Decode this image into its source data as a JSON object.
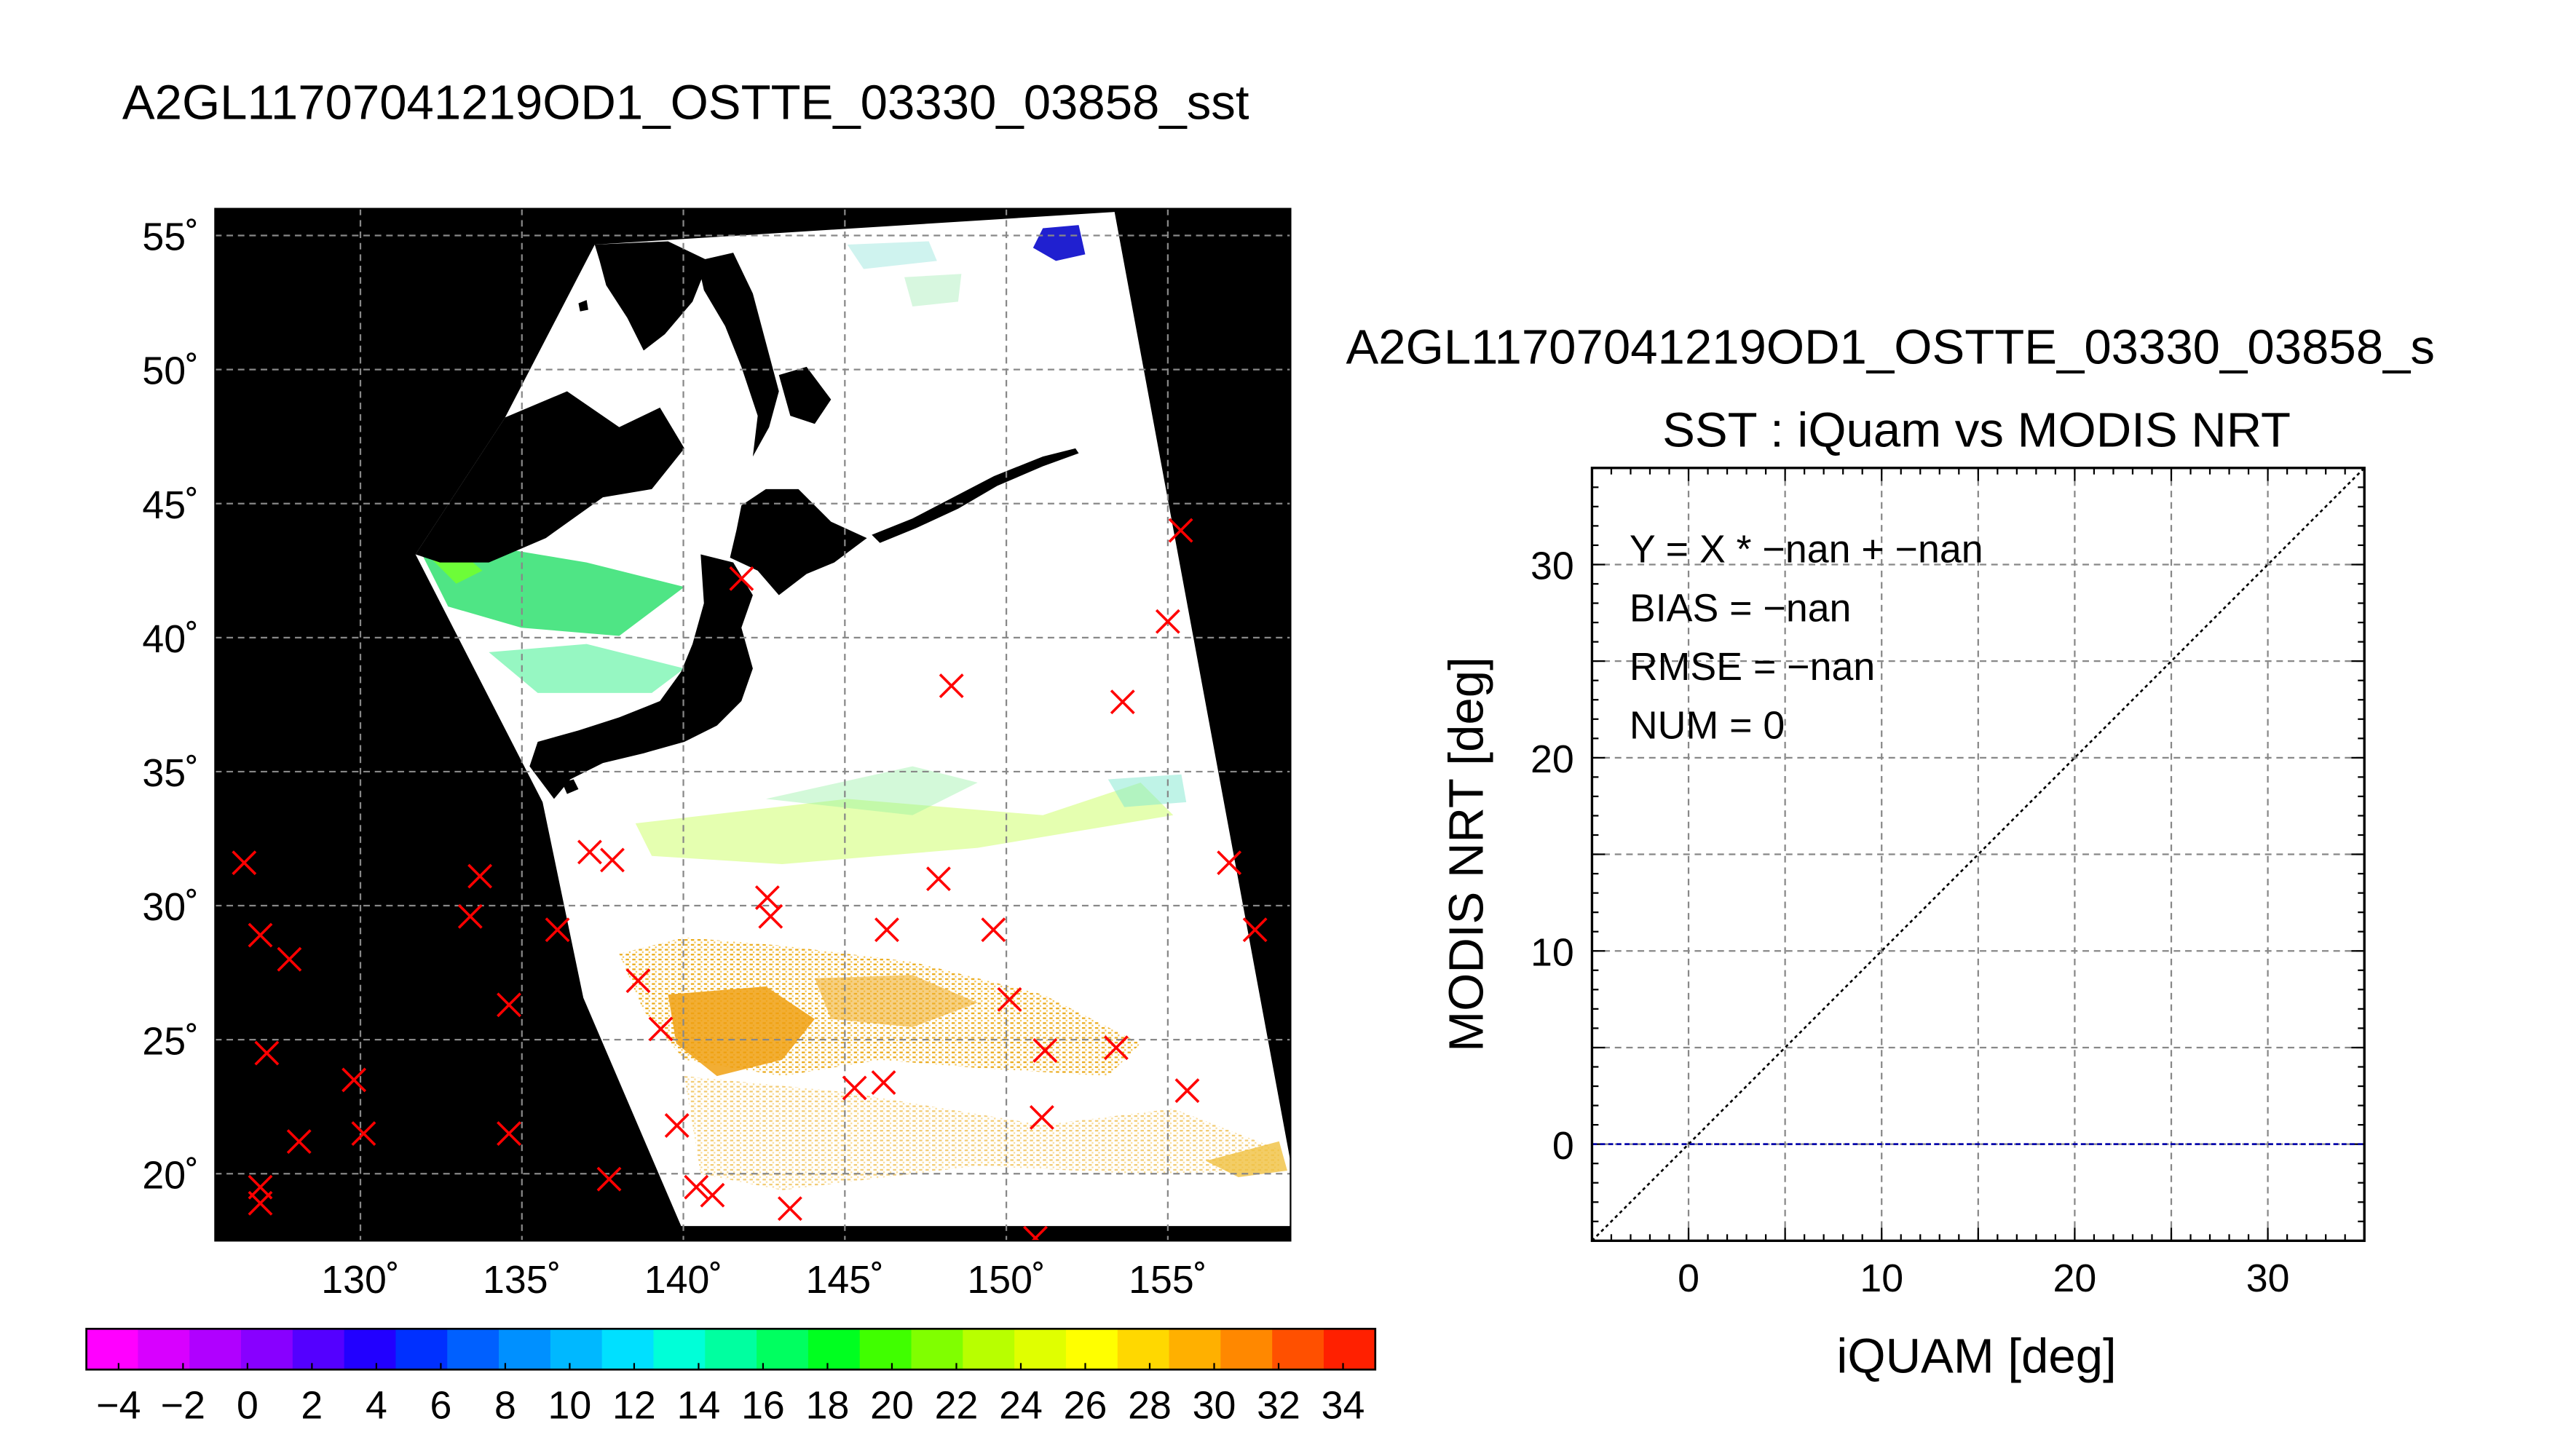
{
  "map": {
    "title": "A2GL11707041219OD1_OSTTE_03330_03858_sst",
    "lat_labels": [
      "55˚",
      "50˚",
      "45˚",
      "40˚",
      "35˚",
      "30˚",
      "25˚",
      "20˚"
    ],
    "lon_labels": [
      "130˚",
      "135˚",
      "140˚",
      "145˚",
      "150˚",
      "155˚"
    ],
    "lat_values": [
      55,
      50,
      45,
      40,
      35,
      30,
      25,
      20
    ],
    "lon_values": [
      130,
      135,
      140,
      145,
      150,
      155
    ],
    "lon_range": [
      125.5,
      158.8
    ],
    "lat_range": [
      17.5,
      56.0
    ],
    "background_color": "#000000",
    "land_color": "#000000",
    "swath_color": "#ffffff",
    "grid": true,
    "marker": "x",
    "marker_color": "#ff0000",
    "points": [
      [
        126.4,
        31.6
      ],
      [
        126.9,
        28.9
      ],
      [
        127.8,
        28.0
      ],
      [
        127.1,
        24.5
      ],
      [
        126.9,
        19.5
      ],
      [
        126.9,
        18.9
      ],
      [
        128.1,
        21.2
      ],
      [
        129.8,
        23.5
      ],
      [
        130.1,
        21.5
      ],
      [
        133.4,
        29.6
      ],
      [
        133.7,
        31.1
      ],
      [
        134.6,
        26.3
      ],
      [
        134.6,
        21.5
      ],
      [
        136.1,
        29.1
      ],
      [
        137.1,
        32.0
      ],
      [
        137.8,
        31.7
      ],
      [
        137.7,
        19.8
      ],
      [
        138.6,
        27.2
      ],
      [
        139.3,
        25.4
      ],
      [
        139.8,
        21.8
      ],
      [
        140.4,
        19.5
      ],
      [
        140.9,
        19.2
      ],
      [
        141.8,
        42.2
      ],
      [
        142.6,
        30.3
      ],
      [
        142.7,
        29.6
      ],
      [
        143.3,
        18.7
      ],
      [
        145.3,
        23.2
      ],
      [
        146.2,
        23.4
      ],
      [
        146.3,
        29.1
      ],
      [
        147.9,
        31.0
      ],
      [
        148.3,
        38.2
      ],
      [
        149.6,
        29.1
      ],
      [
        150.1,
        26.5
      ],
      [
        151.2,
        24.6
      ],
      [
        151.1,
        22.1
      ],
      [
        150.9,
        17.6
      ],
      [
        153.4,
        24.7
      ],
      [
        153.6,
        37.6
      ],
      [
        155.0,
        40.6
      ],
      [
        155.4,
        44.0
      ],
      [
        155.6,
        23.1
      ],
      [
        156.9,
        31.6
      ],
      [
        157.7,
        29.1
      ]
    ]
  },
  "colorbar": {
    "labels": [
      "−4",
      "−2",
      "0",
      "2",
      "4",
      "6",
      "8",
      "10",
      "12",
      "14",
      "16",
      "18",
      "20",
      "22",
      "24",
      "26",
      "28",
      "30",
      "32",
      "34"
    ],
    "colors": [
      "#ff00ff",
      "#d800ff",
      "#b000ff",
      "#8800ff",
      "#5400ff",
      "#2200ff",
      "#0030ff",
      "#0060ff",
      "#0090ff",
      "#00b8ff",
      "#00e0ff",
      "#00ffd8",
      "#00ffa0",
      "#00ff60",
      "#00ff20",
      "#40ff00",
      "#80ff00",
      "#b8ff00",
      "#e0ff00",
      "#ffff00",
      "#ffd800",
      "#ffb000",
      "#ff8800",
      "#ff5000",
      "#ff2000"
    ]
  },
  "scatter": {
    "title": "A2GL11707041219OD1_OSTTE_03330_03858_s",
    "subtitle": "SST : iQuam vs MODIS NRT",
    "stats": [
      "Y = X * −nan + −nan",
      "BIAS = −nan",
      "RMSE = −nan",
      "NUM = 0"
    ],
    "chart_data": {
      "type": "scatter",
      "xlabel": "iQUAM [deg]",
      "ylabel": "MODIS NRT [deg]",
      "xlim": [
        -5,
        35
      ],
      "ylim": [
        -5,
        35
      ],
      "x_tick_labels": [
        "0",
        "10",
        "20",
        "30"
      ],
      "y_tick_labels": [
        "0",
        "10",
        "20",
        "30"
      ],
      "x_ticks": [
        0,
        10,
        20,
        30
      ],
      "y_ticks": [
        0,
        10,
        20,
        30
      ],
      "grid_step": 5,
      "grid": true,
      "points": [],
      "reference_lines": [
        {
          "kind": "identity",
          "color": "#000000",
          "style": "dotted"
        },
        {
          "kind": "horizontal",
          "y": 0,
          "color": "#0000aa",
          "style": "dashed"
        }
      ]
    }
  }
}
